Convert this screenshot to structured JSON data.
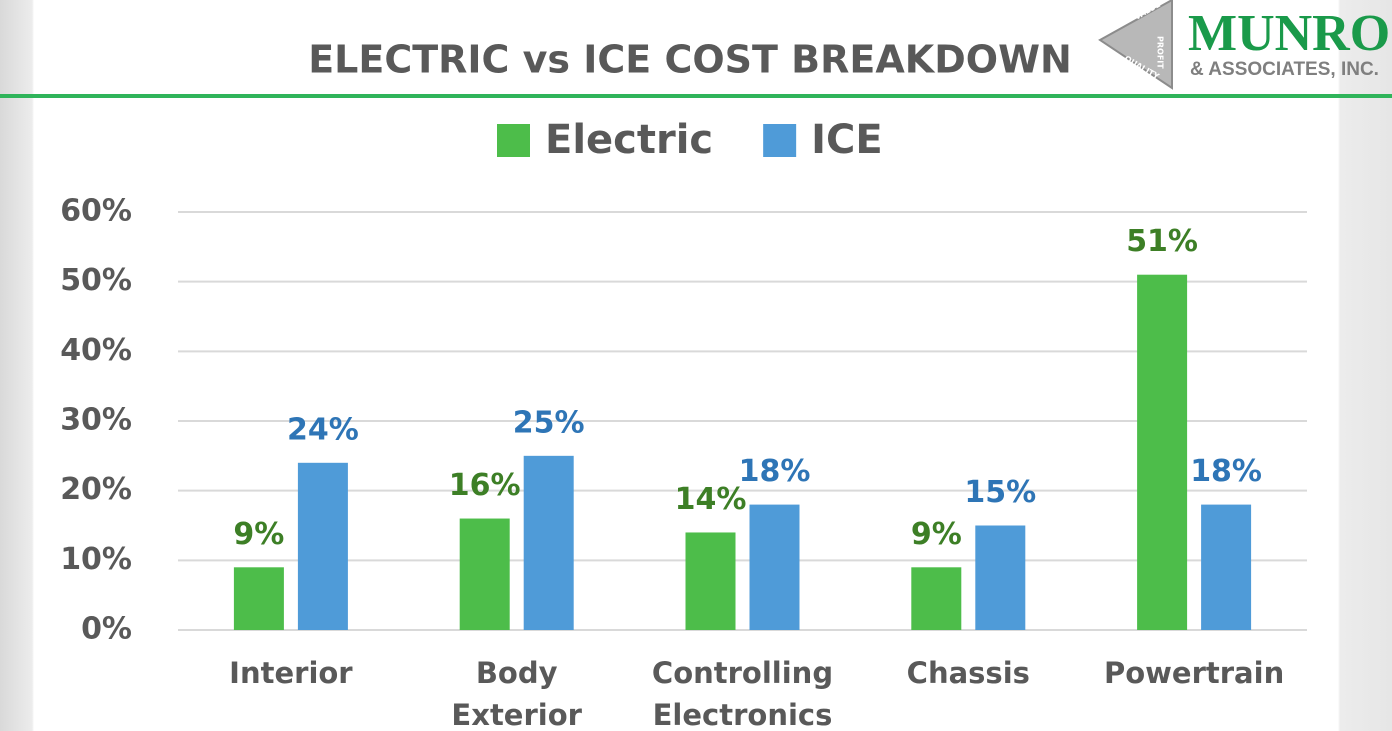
{
  "chart_data": {
    "type": "bar",
    "title": "ELECTRIC vs ICE COST BREAKDOWN",
    "categories": [
      "Interior",
      "Body Exterior",
      "Controlling Electronics",
      "Chassis",
      "Powertrain"
    ],
    "series": [
      {
        "name": "Electric",
        "color": "#4dbd4a",
        "label_color": "#3d7f26",
        "values": [
          9,
          16,
          14,
          9,
          51
        ],
        "value_labels": [
          "9%",
          "16%",
          "14%",
          "9%",
          "51%"
        ]
      },
      {
        "name": "ICE",
        "color": "#4f9bd8",
        "label_color": "#2e75b6",
        "values": [
          24,
          25,
          18,
          15,
          18
        ],
        "value_labels": [
          "24%",
          "25%",
          "18%",
          "15%",
          "18%"
        ]
      }
    ],
    "ylim": [
      0,
      60
    ],
    "yticks": [
      {
        "value": 0,
        "label": "0%"
      },
      {
        "value": 10,
        "label": "10%"
      },
      {
        "value": 20,
        "label": "20%"
      },
      {
        "value": 30,
        "label": "30%"
      },
      {
        "value": 40,
        "label": "40%"
      },
      {
        "value": 50,
        "label": "50%"
      },
      {
        "value": 60,
        "label": "60%"
      }
    ],
    "grid": true,
    "legend": "top"
  },
  "logo": {
    "name": "MUNRO",
    "subtitle": "& ASSOCIATES, INC.",
    "words": [
      "VALUE",
      "PROFIT",
      "QUALITY"
    ]
  }
}
